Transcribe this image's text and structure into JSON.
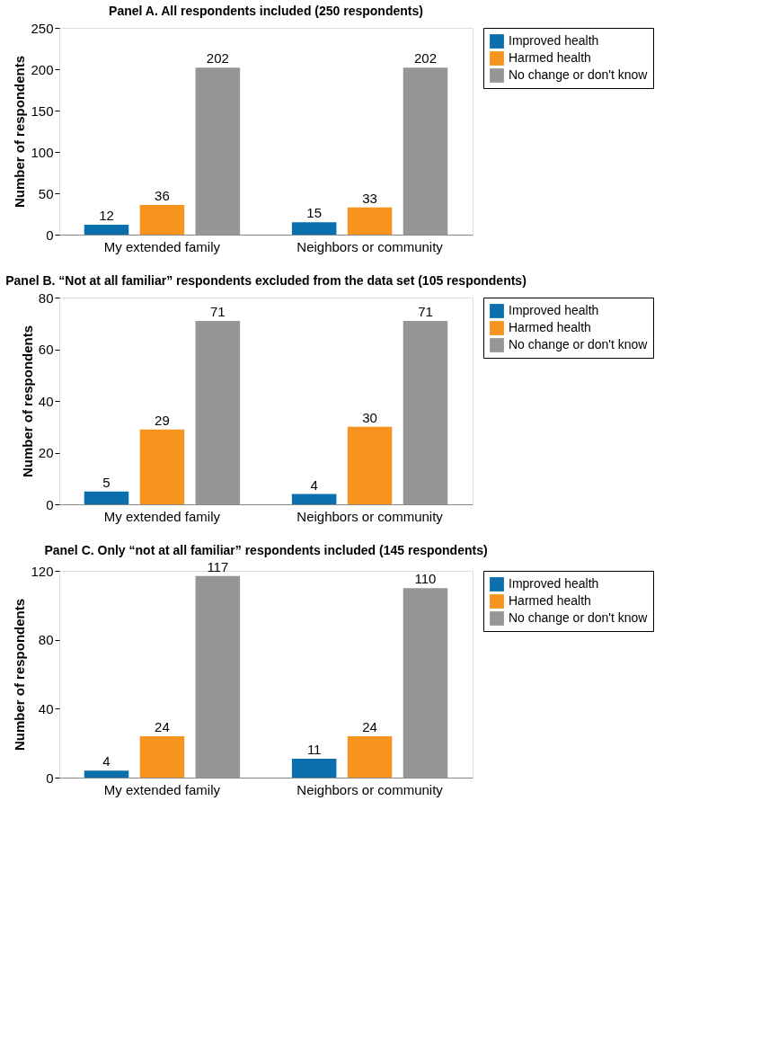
{
  "chart_data": [
    {
      "type": "bar",
      "title": "Panel A. All respondents included (250 respondents)",
      "ylabel": "Number of respondents",
      "categories": [
        "My extended family",
        "Neighbors or community"
      ],
      "series": [
        {
          "name": "Improved health",
          "color": "#0b6fae",
          "values": [
            12,
            15
          ]
        },
        {
          "name": "Harmed health",
          "color": "#f7941d",
          "values": [
            36,
            33
          ]
        },
        {
          "name": "No change or don't know",
          "color": "#969696",
          "values": [
            202,
            202
          ]
        }
      ],
      "ylim": [
        0,
        250
      ],
      "yticks": [
        0,
        50,
        100,
        150,
        200,
        250
      ],
      "grid": false,
      "legend": "right",
      "data_labels": true
    },
    {
      "type": "bar",
      "title": "Panel B. “Not at all familiar” respondents excluded from the data set (105 respondents)",
      "ylabel": "Number of respondents",
      "categories": [
        "My extended family",
        "Neighbors or community"
      ],
      "series": [
        {
          "name": "Improved health",
          "color": "#0b6fae",
          "values": [
            5,
            4
          ]
        },
        {
          "name": "Harmed health",
          "color": "#f7941d",
          "values": [
            29,
            30
          ]
        },
        {
          "name": "No change or don't know",
          "color": "#969696",
          "values": [
            71,
            71
          ]
        }
      ],
      "ylim": [
        0,
        80
      ],
      "yticks": [
        0,
        20,
        40,
        60,
        80
      ],
      "grid": false,
      "legend": "right",
      "data_labels": true
    },
    {
      "type": "bar",
      "title": "Panel C. Only “not at all familiar” respondents included (145 respondents)",
      "ylabel": "Number of respondents",
      "categories": [
        "My extended family",
        "Neighbors or community"
      ],
      "series": [
        {
          "name": "Improved health",
          "color": "#0b6fae",
          "values": [
            4,
            11
          ]
        },
        {
          "name": "Harmed health",
          "color": "#f7941d",
          "values": [
            24,
            24
          ]
        },
        {
          "name": "No change or don't know",
          "color": "#969696",
          "values": [
            117,
            110
          ]
        }
      ],
      "ylim": [
        0,
        120
      ],
      "yticks": [
        0,
        40,
        80,
        120
      ],
      "grid": false,
      "legend": "right",
      "data_labels": true
    }
  ]
}
